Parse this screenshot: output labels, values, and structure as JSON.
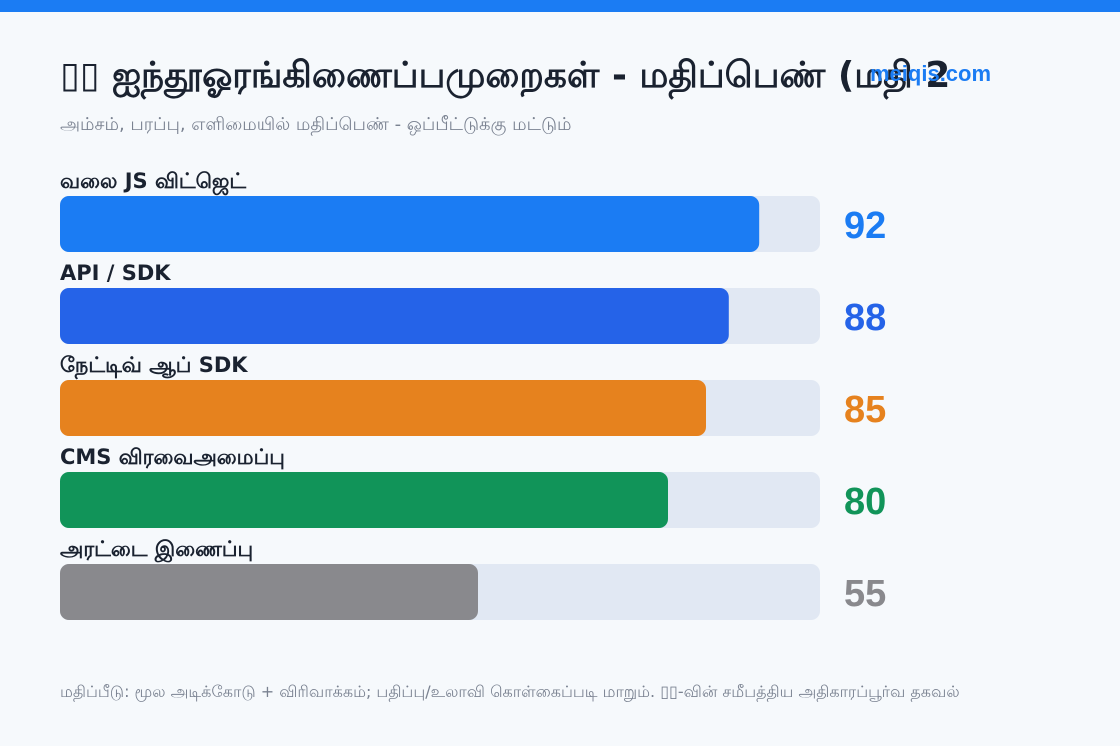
{
  "header": {
    "title": "▯▯ ஐந்தூஓரங்கிணைப்பமுறைகள் - மதிப்பெண் (மதி 2",
    "watermark": "meiqis.com",
    "subtitle": "அம்சம், பரப்பு, எளிமையில் மதிப்பெண் - ஒப்பீட்டுக்கு மட்டும்"
  },
  "chart_data": {
    "type": "bar",
    "orientation": "horizontal",
    "title": "▯▯ ஐந்தூஓரங்கிணைப்பமுறைகள் - மதிப்பெண் (மதி 2",
    "subtitle": "அம்சம், பரப்பு, எளிமையில் மதிப்பெண் - ஒப்பீட்டுக்கு மட்டும்",
    "categories": [
      "வலை JS விட்ஜெட்",
      "API / SDK",
      "நேட்டிவ் ஆப் SDK",
      "CMS விரவைஅமைப்பு",
      "அரட்டை இணைப்பு"
    ],
    "values": [
      92,
      88,
      85,
      80,
      55
    ],
    "colors": [
      "#1b7cf3",
      "#2563e8",
      "#e6821e",
      "#119459",
      "#89898d"
    ],
    "track_color": "#e1e8f3",
    "xlim": [
      0,
      100
    ],
    "xlabel": "",
    "ylabel": "",
    "grid": false,
    "legend": "none"
  },
  "footer": {
    "note": "மதிப்பீடு: மூல அடிக்கோடு + விரிவாக்கம்; பதிப்பு/உலாவி கொள்கைப்படி மாறும். ▯▯-வின் சமீபத்திய அதிகாரப்பூர்வ தகவல்"
  }
}
